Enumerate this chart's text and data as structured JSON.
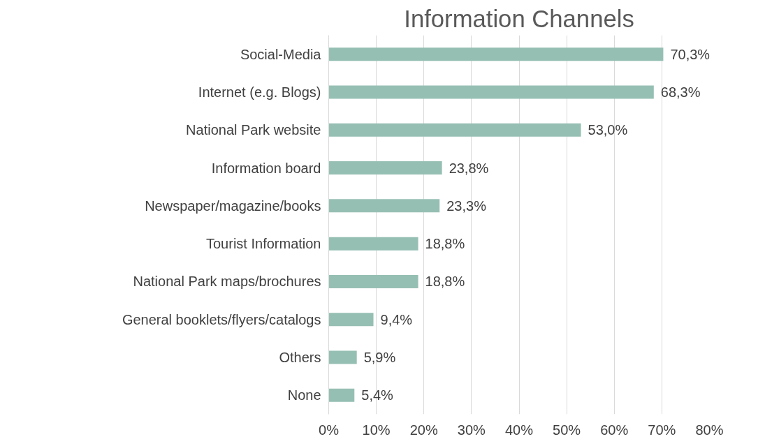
{
  "chart_data": {
    "type": "bar",
    "orientation": "horizontal",
    "title": "Information Channels",
    "categories": [
      "Social-Media",
      "Internet (e.g. Blogs)",
      "National Park website",
      "Information board",
      "Newspaper/magazine/books",
      "Tourist Information",
      "National Park maps/brochures",
      "General booklets/flyers/catalogs",
      "Others",
      "None"
    ],
    "values": [
      70.3,
      68.3,
      53.0,
      23.8,
      23.3,
      18.8,
      18.8,
      9.4,
      5.9,
      5.4
    ],
    "value_labels": [
      "70,3%",
      "68,3%",
      "53,0%",
      "23,8%",
      "23,3%",
      "18,8%",
      "18,8%",
      "9,4%",
      "5,9%",
      "5,4%"
    ],
    "color": "#96bfb3",
    "xlim": [
      0,
      80
    ],
    "xticks": [
      {
        "value": 0,
        "label": "0%"
      },
      {
        "value": 10,
        "label": "10%"
      },
      {
        "value": 20,
        "label": "20%"
      },
      {
        "value": 30,
        "label": "30%"
      },
      {
        "value": 40,
        "label": "40%"
      },
      {
        "value": 50,
        "label": "50%"
      },
      {
        "value": 60,
        "label": "60%"
      },
      {
        "value": 70,
        "label": "70%"
      },
      {
        "value": 80,
        "label": "80%"
      }
    ],
    "grid": "x"
  }
}
